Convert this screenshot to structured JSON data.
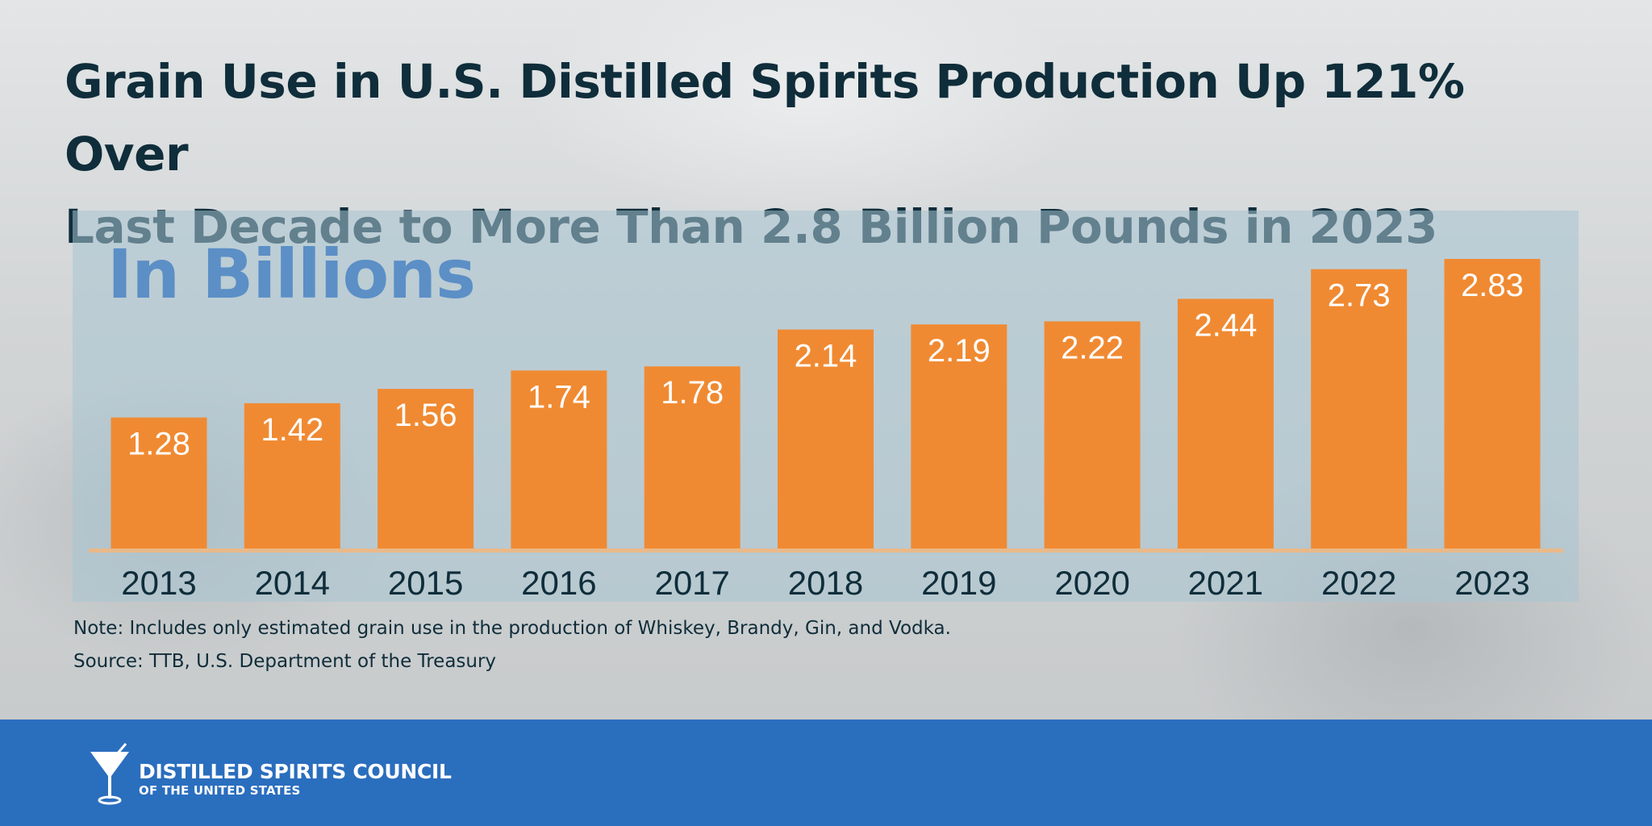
{
  "headline": {
    "line1": "Grain Use in U.S. Distilled Spirits Production Up 121% Over",
    "line2": "Last Decade to More Than 2.8 Billion Pounds in 2023"
  },
  "chart_data": {
    "type": "bar",
    "unit_label": "In Billions",
    "categories": [
      "2013",
      "2014",
      "2015",
      "2016",
      "2017",
      "2018",
      "2019",
      "2020",
      "2021",
      "2022",
      "2023"
    ],
    "values": [
      1.28,
      1.42,
      1.56,
      1.74,
      1.78,
      2.14,
      2.19,
      2.22,
      2.44,
      2.73,
      2.83
    ],
    "value_labels": [
      "1.28",
      "1.42",
      "1.56",
      "1.74",
      "1.78",
      "2.14",
      "2.19",
      "2.22",
      "2.44",
      "2.73",
      "2.83"
    ],
    "ylim": [
      0,
      2.83
    ],
    "grid": false,
    "legend": "none",
    "bar_color": "#f08a32",
    "axis_color": "#e9b98a",
    "label_color": "#ffffff",
    "tick_color": "#0f2d3a"
  },
  "notes": {
    "note": "Note: Includes only estimated grain use in the production of Whiskey, Brandy, Gin, and Vodka.",
    "source": "Source: TTB, U.S. Department of the Treasury"
  },
  "footer": {
    "logo_icon": "martini-glass-icon",
    "org_name_line1": "DISTILLED SPIRITS COUNCIL",
    "org_name_line2": "OF THE UNITED STATES",
    "background_color": "#2a6ebe"
  },
  "colors": {
    "headline": "#0f2d3a",
    "unit_label": "#5b8fc6",
    "panel": "#a8c4d2"
  }
}
